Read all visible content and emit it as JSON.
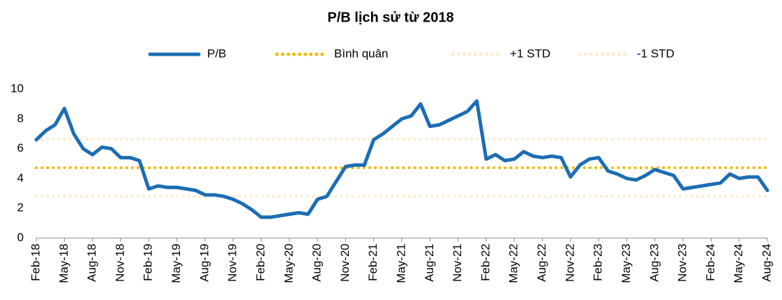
{
  "chart_data": {
    "type": "line",
    "title": "P/B lịch sử từ 2018",
    "categories": [
      "Feb-18",
      null,
      null,
      "May-18",
      null,
      null,
      "Aug-18",
      null,
      null,
      "Nov-18",
      null,
      null,
      "Feb-19",
      null,
      null,
      "May-19",
      null,
      null,
      "Aug-19",
      null,
      null,
      "Nov-19",
      null,
      null,
      "Feb-20",
      null,
      null,
      "May-20",
      null,
      null,
      "Aug-20",
      null,
      null,
      "Nov-20",
      null,
      null,
      "Feb-21",
      null,
      null,
      "May-21",
      null,
      null,
      "Aug-21",
      null,
      null,
      "Nov-21",
      null,
      null,
      "Feb-22",
      null,
      null,
      "May-22",
      null,
      null,
      "Aug-22",
      null,
      null,
      "Nov-22",
      null,
      null,
      "Feb-23",
      null,
      null,
      "May-23",
      null,
      null,
      "Aug-23",
      null,
      null,
      "Nov-23",
      null,
      null,
      "Feb-24",
      null,
      null,
      "May-24",
      null,
      null,
      "Aug-24"
    ],
    "series": [
      {
        "name": "P/B",
        "color": "#1b6db4",
        "values": [
          6.6,
          7.2,
          7.6,
          8.7,
          7.0,
          6.0,
          5.6,
          6.1,
          6.0,
          5.4,
          5.4,
          5.2,
          3.3,
          3.5,
          3.4,
          3.4,
          3.3,
          3.2,
          2.9,
          2.9,
          2.8,
          2.6,
          2.3,
          1.9,
          1.4,
          1.4,
          1.5,
          1.6,
          1.7,
          1.6,
          2.6,
          2.8,
          3.8,
          4.8,
          4.9,
          4.9,
          6.6,
          7.0,
          7.5,
          8.0,
          8.2,
          9.0,
          7.5,
          7.6,
          7.9,
          8.2,
          8.5,
          9.2,
          5.3,
          5.6,
          5.2,
          5.3,
          5.8,
          5.5,
          5.4,
          5.5,
          5.4,
          4.1,
          4.9,
          5.3,
          5.4,
          4.5,
          4.3,
          4.0,
          3.9,
          4.2,
          4.6,
          4.4,
          4.2,
          3.3,
          3.4,
          3.5,
          3.6,
          3.7,
          4.3,
          4.0,
          4.1,
          4.1,
          3.2
        ]
      }
    ],
    "reference_lines": [
      {
        "name": "Bình quân",
        "color": "#f5b800",
        "value": 4.72
      },
      {
        "name": "+1 STD",
        "color": "#fbeccb",
        "value": 6.64
      },
      {
        "name": "-1 STD",
        "color": "#fbeccb",
        "value": 2.8
      }
    ],
    "ylim": [
      0,
      10
    ],
    "yticks": [
      0,
      2,
      4,
      6,
      8,
      10
    ],
    "grid": false
  }
}
